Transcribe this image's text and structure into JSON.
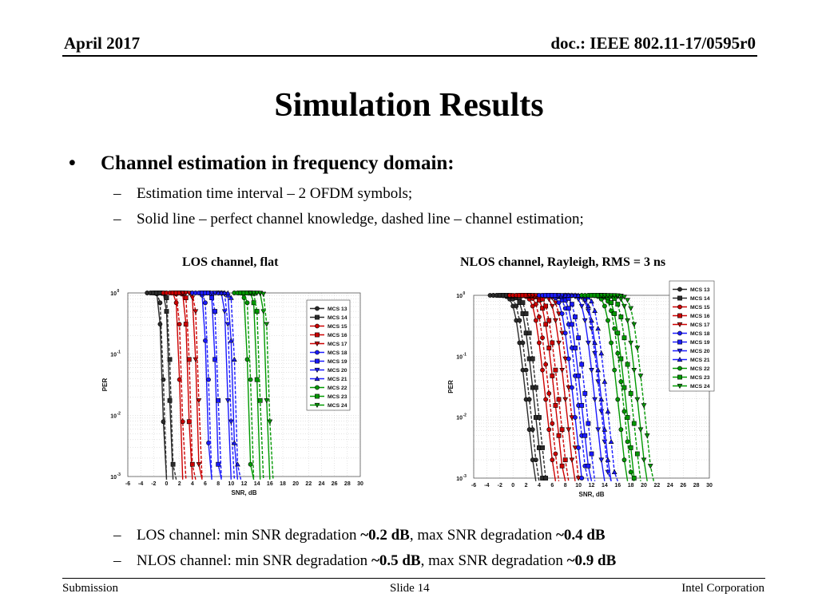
{
  "header": {
    "date": "April 2017",
    "doc": "doc.: IEEE 802.11-17/0595r0"
  },
  "title": "Simulation Results",
  "bullet": {
    "symbol": "•",
    "text": "Channel estimation in frequency domain:",
    "subs": [
      "Estimation time interval – 2 OFDM symbols;",
      "Solid line – perfect channel knowledge, dashed line – channel estimation;"
    ]
  },
  "dash": "–",
  "bottom": {
    "los": {
      "prefix": "LOS channel: min SNR degradation ",
      "min": "~0.2 dB",
      "middle": ", max SNR degradation ",
      "max": "~0.4 dB"
    },
    "nlos": {
      "prefix": "NLOS channel: min SNR degradation ",
      "min": "~0.5 dB",
      "middle": ", max SNR degradation ",
      "max": "~0.9 dB"
    }
  },
  "footer": {
    "left": "Submission",
    "center": "Slide 14",
    "right": "Intel Corporation"
  },
  "legend_entries": [
    "MCS 13",
    "MCS 14",
    "MCS 15",
    "MCS 16",
    "MCS 17",
    "MCS 18",
    "MCS 19",
    "MCS 20",
    "MCS 21",
    "MCS 22",
    "MCS 23",
    "MCS 24"
  ],
  "chart_data": [
    {
      "type": "line",
      "title": "LOS channel, flat",
      "xlabel": "SNR, dB",
      "ylabel": "PER",
      "yscale": "log",
      "xlim": [
        -6,
        30
      ],
      "ylim": [
        0.001,
        1
      ],
      "xticks": [
        -6,
        -4,
        -2,
        0,
        2,
        4,
        6,
        8,
        10,
        12,
        14,
        16,
        18,
        20,
        22,
        24,
        26,
        28,
        30
      ],
      "yticks": [
        "10^0",
        "10^-1",
        "10^-2",
        "10^-3"
      ],
      "legend_position": "right-middle",
      "grid": true,
      "line_styles": {
        "perfect_channel": "solid",
        "channel_estimation": "dashed"
      },
      "series": [
        {
          "name": "MCS 13",
          "color": "#2b2b2b",
          "marker": "circle",
          "x50": -1.1,
          "slope": 3.5,
          "est_shift": 0.2
        },
        {
          "name": "MCS 14",
          "color": "#2b2b2b",
          "marker": "square",
          "x50": 0.0,
          "slope": 3.5,
          "est_shift": 0.2
        },
        {
          "name": "MCS 15",
          "color": "#cc0000",
          "marker": "circle",
          "x50": 1.6,
          "slope": 3.5,
          "est_shift": 0.3
        },
        {
          "name": "MCS 16",
          "color": "#cc0000",
          "marker": "square",
          "x50": 2.9,
          "slope": 3.5,
          "est_shift": 0.3
        },
        {
          "name": "MCS 17",
          "color": "#cc0000",
          "marker": "triangle-down",
          "x50": 4.2,
          "slope": 3.5,
          "est_shift": 0.3
        },
        {
          "name": "MCS 18",
          "color": "#1a1aff",
          "marker": "circle",
          "x50": 5.8,
          "slope": 3.5,
          "est_shift": 0.3
        },
        {
          "name": "MCS 19",
          "color": "#1a1aff",
          "marker": "square",
          "x50": 7.2,
          "slope": 3.5,
          "est_shift": 0.3
        },
        {
          "name": "MCS 20",
          "color": "#1a1aff",
          "marker": "triangle-down",
          "x50": 9.0,
          "slope": 3.5,
          "est_shift": 0.4
        },
        {
          "name": "MCS 21",
          "color": "#1a1aff",
          "marker": "triangle-up",
          "x50": 9.8,
          "slope": 3.5,
          "est_shift": 0.4
        },
        {
          "name": "MCS 22",
          "color": "#009900",
          "marker": "circle",
          "x50": 12.2,
          "slope": 3.5,
          "est_shift": 0.4
        },
        {
          "name": "MCS 23",
          "color": "#009900",
          "marker": "square",
          "x50": 13.6,
          "slope": 3.5,
          "est_shift": 0.4
        },
        {
          "name": "MCS 24",
          "color": "#009900",
          "marker": "triangle-down",
          "x50": 15.0,
          "slope": 3.5,
          "est_shift": 0.4
        }
      ]
    },
    {
      "type": "line",
      "title": "NLOS channel, Rayleigh, RMS = 3 ns",
      "xlabel": "SNR, dB",
      "ylabel": "PER",
      "yscale": "log",
      "xlim": [
        -6,
        30
      ],
      "ylim": [
        0.001,
        1
      ],
      "xticks": [
        -6,
        -4,
        -2,
        0,
        2,
        4,
        6,
        8,
        10,
        12,
        14,
        16,
        18,
        20,
        22,
        24,
        26,
        28,
        30
      ],
      "yticks": [
        "10^0",
        "10^-1",
        "10^-2",
        "10^-3"
      ],
      "legend_position": "top-right",
      "grid": true,
      "line_styles": {
        "perfect_channel": "solid",
        "channel_estimation": "dashed"
      },
      "series": [
        {
          "name": "MCS 13",
          "color": "#2b2b2b",
          "marker": "circle",
          "x50": 0.3,
          "slope": 1.0,
          "est_shift": 0.5
        },
        {
          "name": "MCS 14",
          "color": "#2b2b2b",
          "marker": "square",
          "x50": 1.5,
          "slope": 1.0,
          "est_shift": 0.5
        },
        {
          "name": "MCS 15",
          "color": "#cc0000",
          "marker": "circle",
          "x50": 3.3,
          "slope": 1.0,
          "est_shift": 0.6
        },
        {
          "name": "MCS 16",
          "color": "#cc0000",
          "marker": "square",
          "x50": 4.7,
          "slope": 1.0,
          "est_shift": 0.6
        },
        {
          "name": "MCS 17",
          "color": "#cc0000",
          "marker": "triangle-down",
          "x50": 6.3,
          "slope": 1.0,
          "est_shift": 0.7
        },
        {
          "name": "MCS 18",
          "color": "#1a1aff",
          "marker": "circle",
          "x50": 7.5,
          "slope": 1.0,
          "est_shift": 0.7
        },
        {
          "name": "MCS 19",
          "color": "#1a1aff",
          "marker": "square",
          "x50": 8.7,
          "slope": 1.0,
          "est_shift": 0.7
        },
        {
          "name": "MCS 20",
          "color": "#1a1aff",
          "marker": "triangle-down",
          "x50": 10.8,
          "slope": 1.0,
          "est_shift": 0.8
        },
        {
          "name": "MCS 21",
          "color": "#1a1aff",
          "marker": "triangle-up",
          "x50": 11.8,
          "slope": 1.0,
          "est_shift": 0.8
        },
        {
          "name": "MCS 22",
          "color": "#009900",
          "marker": "circle",
          "x50": 14.3,
          "slope": 1.0,
          "est_shift": 0.8
        },
        {
          "name": "MCS 23",
          "color": "#009900",
          "marker": "square",
          "x50": 15.5,
          "slope": 1.0,
          "est_shift": 0.9
        },
        {
          "name": "MCS 24",
          "color": "#009900",
          "marker": "triangle-down",
          "x50": 17.3,
          "slope": 1.0,
          "est_shift": 0.9
        }
      ]
    }
  ]
}
